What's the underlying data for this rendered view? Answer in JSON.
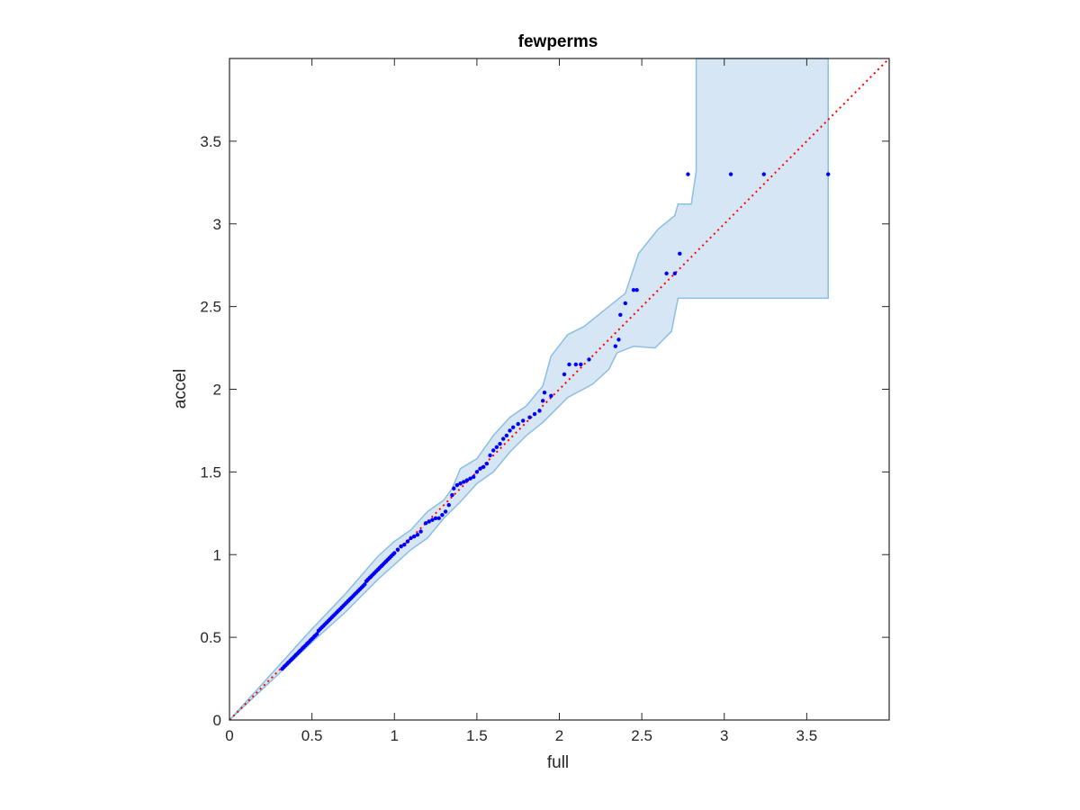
{
  "chart_data": {
    "type": "scatter",
    "title": "fewperms",
    "xlabel": "full",
    "ylabel": "accel",
    "xlim": [
      0,
      4
    ],
    "ylim": [
      0,
      4
    ],
    "xticks": [
      "0",
      "0.5",
      "1",
      "1.5",
      "2",
      "2.5",
      "3",
      "3.5"
    ],
    "yticks": [
      "0",
      "0.5",
      "1",
      "1.5",
      "2",
      "2.5",
      "3",
      "3.5"
    ],
    "grid": false,
    "colors": {
      "points": "#0000ff",
      "reference_line": "#ff0000",
      "band_fill": "#d6e6f4",
      "band_edge": "#8cbfe0",
      "axes": "#262626"
    },
    "reference_line": {
      "x": [
        0,
        4
      ],
      "y": [
        0,
        4
      ],
      "style": "dotted"
    },
    "band_upper": [
      [
        0,
        0
      ],
      [
        0.3,
        0.33
      ],
      [
        0.5,
        0.55
      ],
      [
        0.7,
        0.76
      ],
      [
        0.9,
        0.99
      ],
      [
        1.0,
        1.08
      ],
      [
        1.1,
        1.15
      ],
      [
        1.2,
        1.26
      ],
      [
        1.3,
        1.33
      ],
      [
        1.35,
        1.4
      ],
      [
        1.4,
        1.52
      ],
      [
        1.5,
        1.58
      ],
      [
        1.6,
        1.72
      ],
      [
        1.7,
        1.83
      ],
      [
        1.8,
        1.9
      ],
      [
        1.9,
        2.02
      ],
      [
        1.95,
        2.2
      ],
      [
        2.05,
        2.33
      ],
      [
        2.15,
        2.38
      ],
      [
        2.3,
        2.5
      ],
      [
        2.4,
        2.58
      ],
      [
        2.48,
        2.82
      ],
      [
        2.6,
        2.97
      ],
      [
        2.7,
        3.05
      ],
      [
        2.72,
        3.12
      ],
      [
        2.8,
        3.12
      ],
      [
        2.83,
        3.32
      ],
      [
        2.83,
        4.0
      ],
      [
        3.63,
        4.0
      ]
    ],
    "band_lower": [
      [
        3.63,
        2.55
      ],
      [
        2.72,
        2.55
      ],
      [
        2.68,
        2.35
      ],
      [
        2.58,
        2.25
      ],
      [
        2.45,
        2.26
      ],
      [
        2.35,
        2.22
      ],
      [
        2.3,
        2.12
      ],
      [
        2.2,
        2.03
      ],
      [
        2.05,
        1.95
      ],
      [
        1.9,
        1.8
      ],
      [
        1.8,
        1.72
      ],
      [
        1.7,
        1.62
      ],
      [
        1.6,
        1.5
      ],
      [
        1.5,
        1.43
      ],
      [
        1.4,
        1.32
      ],
      [
        1.3,
        1.22
      ],
      [
        1.2,
        1.1
      ],
      [
        1.1,
        1.03
      ],
      [
        1.0,
        0.94
      ],
      [
        0.9,
        0.85
      ],
      [
        0.7,
        0.65
      ],
      [
        0.5,
        0.47
      ],
      [
        0.3,
        0.28
      ],
      [
        0,
        0
      ]
    ],
    "points": [
      [
        0.32,
        0.31
      ],
      [
        0.33,
        0.32
      ],
      [
        0.34,
        0.33
      ],
      [
        0.35,
        0.34
      ],
      [
        0.36,
        0.35
      ],
      [
        0.37,
        0.36
      ],
      [
        0.38,
        0.37
      ],
      [
        0.39,
        0.38
      ],
      [
        0.4,
        0.39
      ],
      [
        0.41,
        0.4
      ],
      [
        0.42,
        0.41
      ],
      [
        0.43,
        0.42
      ],
      [
        0.44,
        0.43
      ],
      [
        0.45,
        0.44
      ],
      [
        0.46,
        0.45
      ],
      [
        0.47,
        0.46
      ],
      [
        0.48,
        0.47
      ],
      [
        0.49,
        0.48
      ],
      [
        0.5,
        0.49
      ],
      [
        0.51,
        0.5
      ],
      [
        0.52,
        0.51
      ],
      [
        0.53,
        0.52
      ],
      [
        0.54,
        0.54
      ],
      [
        0.55,
        0.55
      ],
      [
        0.56,
        0.56
      ],
      [
        0.57,
        0.57
      ],
      [
        0.58,
        0.58
      ],
      [
        0.59,
        0.59
      ],
      [
        0.6,
        0.6
      ],
      [
        0.61,
        0.61
      ],
      [
        0.62,
        0.62
      ],
      [
        0.63,
        0.63
      ],
      [
        0.64,
        0.64
      ],
      [
        0.65,
        0.65
      ],
      [
        0.66,
        0.66
      ],
      [
        0.67,
        0.67
      ],
      [
        0.68,
        0.68
      ],
      [
        0.69,
        0.69
      ],
      [
        0.7,
        0.7
      ],
      [
        0.71,
        0.71
      ],
      [
        0.72,
        0.72
      ],
      [
        0.73,
        0.73
      ],
      [
        0.74,
        0.74
      ],
      [
        0.75,
        0.75
      ],
      [
        0.76,
        0.76
      ],
      [
        0.77,
        0.77
      ],
      [
        0.78,
        0.78
      ],
      [
        0.79,
        0.79
      ],
      [
        0.8,
        0.8
      ],
      [
        0.81,
        0.81
      ],
      [
        0.82,
        0.82
      ],
      [
        0.83,
        0.84
      ],
      [
        0.84,
        0.85
      ],
      [
        0.85,
        0.86
      ],
      [
        0.86,
        0.87
      ],
      [
        0.87,
        0.88
      ],
      [
        0.88,
        0.89
      ],
      [
        0.89,
        0.9
      ],
      [
        0.9,
        0.91
      ],
      [
        0.91,
        0.92
      ],
      [
        0.92,
        0.93
      ],
      [
        0.93,
        0.94
      ],
      [
        0.94,
        0.95
      ],
      [
        0.95,
        0.96
      ],
      [
        0.96,
        0.97
      ],
      [
        0.97,
        0.98
      ],
      [
        0.98,
        0.99
      ],
      [
        0.99,
        1.0
      ],
      [
        1.0,
        1.01
      ],
      [
        1.02,
        1.03
      ],
      [
        1.04,
        1.05
      ],
      [
        1.06,
        1.06
      ],
      [
        1.08,
        1.08
      ],
      [
        1.1,
        1.1
      ],
      [
        1.12,
        1.11
      ],
      [
        1.14,
        1.12
      ],
      [
        1.16,
        1.14
      ],
      [
        1.19,
        1.19
      ],
      [
        1.21,
        1.2
      ],
      [
        1.23,
        1.21
      ],
      [
        1.25,
        1.22
      ],
      [
        1.27,
        1.22
      ],
      [
        1.29,
        1.24
      ],
      [
        1.31,
        1.26
      ],
      [
        1.33,
        1.3
      ],
      [
        1.35,
        1.36
      ],
      [
        1.36,
        1.4
      ],
      [
        1.38,
        1.42
      ],
      [
        1.4,
        1.43
      ],
      [
        1.42,
        1.44
      ],
      [
        1.44,
        1.45
      ],
      [
        1.46,
        1.46
      ],
      [
        1.48,
        1.47
      ],
      [
        1.5,
        1.5
      ],
      [
        1.52,
        1.52
      ],
      [
        1.54,
        1.53
      ],
      [
        1.56,
        1.55
      ],
      [
        1.58,
        1.6
      ],
      [
        1.6,
        1.63
      ],
      [
        1.62,
        1.65
      ],
      [
        1.64,
        1.67
      ],
      [
        1.66,
        1.7
      ],
      [
        1.68,
        1.72
      ],
      [
        1.7,
        1.75
      ],
      [
        1.72,
        1.77
      ],
      [
        1.75,
        1.79
      ],
      [
        1.78,
        1.81
      ],
      [
        1.82,
        1.83
      ],
      [
        1.85,
        1.85
      ],
      [
        1.88,
        1.87
      ],
      [
        1.9,
        1.93
      ],
      [
        1.91,
        1.98
      ],
      [
        1.95,
        1.96
      ],
      [
        2.03,
        2.09
      ],
      [
        2.06,
        2.15
      ],
      [
        2.1,
        2.15
      ],
      [
        2.13,
        2.15
      ],
      [
        2.18,
        2.18
      ],
      [
        2.34,
        2.26
      ],
      [
        2.36,
        2.3
      ],
      [
        2.37,
        2.45
      ],
      [
        2.4,
        2.52
      ],
      [
        2.45,
        2.6
      ],
      [
        2.47,
        2.6
      ],
      [
        2.65,
        2.7
      ],
      [
        2.7,
        2.7
      ],
      [
        2.73,
        2.82
      ],
      [
        2.78,
        3.3
      ],
      [
        3.04,
        3.3
      ],
      [
        3.24,
        3.3
      ],
      [
        3.63,
        3.3
      ]
    ]
  }
}
